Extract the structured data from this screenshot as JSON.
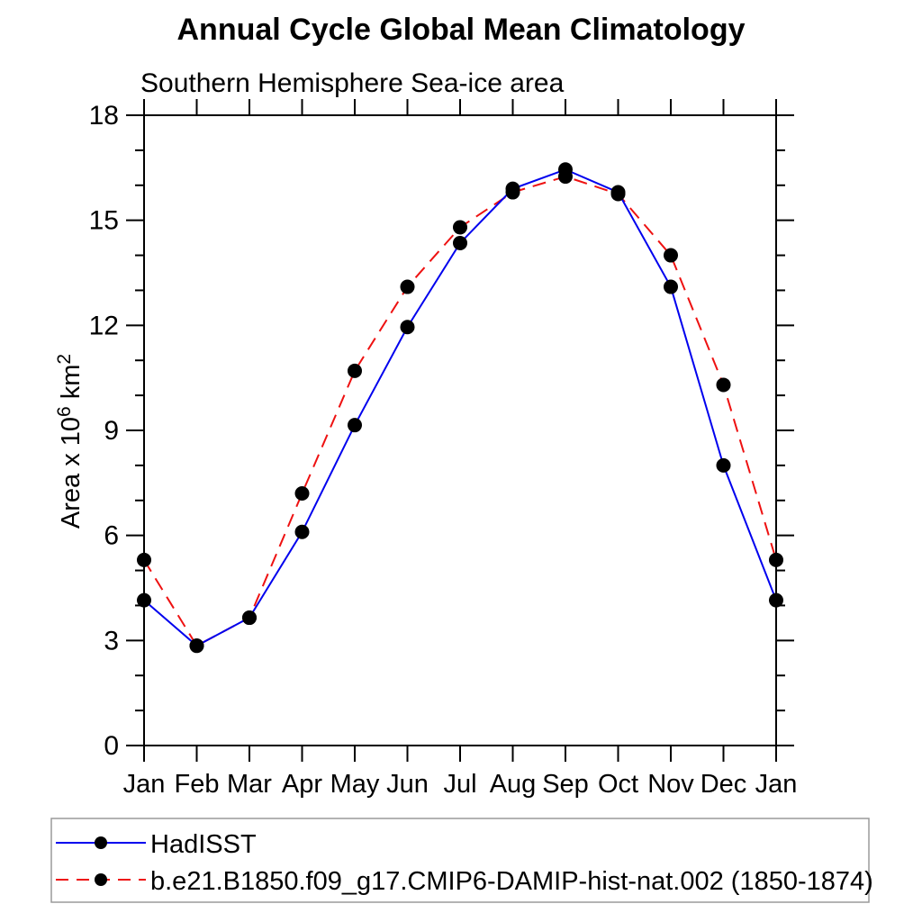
{
  "chart_data": {
    "type": "line",
    "title": "Annual Cycle Global Mean Climatology",
    "subtitle": "Southern Hemisphere Sea-ice area",
    "ylabel": "Area x 10⁶ km²",
    "ylabel_parts": {
      "base": "Area x 10",
      "sup1": "6",
      "mid": " km",
      "sup2": "2"
    },
    "xlabel": "",
    "categories": [
      "Jan",
      "Feb",
      "Mar",
      "Apr",
      "May",
      "Jun",
      "Jul",
      "Aug",
      "Sep",
      "Oct",
      "Nov",
      "Dec",
      "Jan"
    ],
    "series": [
      {
        "name": "HadISST",
        "color": "#0000ee",
        "line_style": "solid",
        "marker": "filled-circle",
        "marker_color": "#000000",
        "values": [
          4.15,
          2.85,
          3.65,
          6.1,
          9.15,
          11.95,
          14.35,
          15.9,
          16.45,
          15.8,
          13.1,
          8.0,
          4.15
        ]
      },
      {
        "name": "b.e21.B1850.f09_g17.CMIP6-DAMIP-hist-nat.002 (1850-1874)",
        "color": "#ee1111",
        "line_style": "dashed",
        "marker": "filled-circle",
        "marker_color": "#000000",
        "values": [
          5.3,
          2.85,
          3.65,
          7.2,
          10.7,
          13.1,
          14.8,
          15.8,
          16.25,
          15.75,
          14.0,
          10.3,
          5.3
        ]
      }
    ],
    "ylim": [
      0,
      18
    ],
    "yticks_major": [
      0,
      3,
      6,
      9,
      12,
      15,
      18
    ],
    "ytick_minor_step": 1,
    "grid": "off",
    "legend_position": "bottom-left-box",
    "axis_color": "#000000",
    "legend_border_color": "#9a9a9a"
  }
}
